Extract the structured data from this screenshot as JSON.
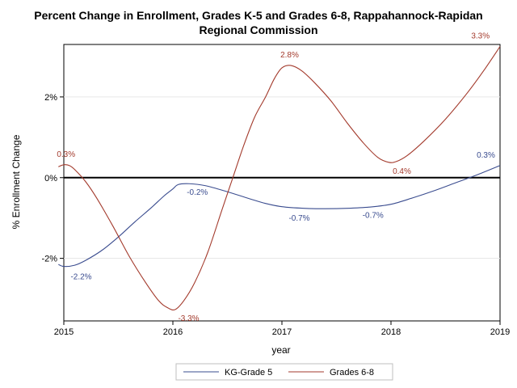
{
  "chart_data": {
    "type": "line",
    "title": [
      "Percent Change in Enrollment, Grades K-5 and Grades 6-8, Rappahannock-Rapidan",
      "Regional Commission"
    ],
    "xlabel": "year",
    "ylabel": "% Enrollment Change",
    "xlim": [
      2015,
      2019
    ],
    "ylim": [
      -3.55,
      3.3
    ],
    "x_ticks": [
      "2015",
      "2016",
      "2017",
      "2018",
      "2019"
    ],
    "y_ticks": [
      {
        "value": -2,
        "label": "-2%"
      },
      {
        "value": 0,
        "label": "0%"
      },
      {
        "value": 2,
        "label": "2%"
      }
    ],
    "reference_line": 0,
    "grid": true,
    "legend_position": "bottom",
    "series": [
      {
        "name": "KG-Grade 5",
        "color": "#3a4c8f",
        "points": [
          [
            2014.95,
            -2.15
          ],
          [
            2015.0,
            -2.2
          ],
          [
            2015.1,
            -2.17
          ],
          [
            2015.2,
            -2.05
          ],
          [
            2015.35,
            -1.8
          ],
          [
            2015.5,
            -1.47
          ],
          [
            2015.65,
            -1.1
          ],
          [
            2015.8,
            -0.75
          ],
          [
            2015.92,
            -0.45
          ],
          [
            2016.0,
            -0.28
          ],
          [
            2016.05,
            -0.17
          ],
          [
            2016.15,
            -0.15
          ],
          [
            2016.3,
            -0.2
          ],
          [
            2016.5,
            -0.35
          ],
          [
            2016.7,
            -0.52
          ],
          [
            2016.85,
            -0.64
          ],
          [
            2017.0,
            -0.72
          ],
          [
            2017.2,
            -0.76
          ],
          [
            2017.4,
            -0.77
          ],
          [
            2017.6,
            -0.76
          ],
          [
            2017.8,
            -0.73
          ],
          [
            2018.0,
            -0.66
          ],
          [
            2018.2,
            -0.5
          ],
          [
            2018.4,
            -0.32
          ],
          [
            2018.6,
            -0.12
          ],
          [
            2018.8,
            0.08
          ],
          [
            2019.0,
            0.3
          ]
        ],
        "labels": [
          {
            "x": 2015.1,
            "y": -2.2,
            "text": "-2.2%"
          },
          {
            "x": 2016.15,
            "y": -0.15,
            "text": "-0.2%"
          },
          {
            "x": 2017.1,
            "y": -0.75,
            "text": "-0.7%"
          },
          {
            "x": 2017.85,
            "y": -0.72,
            "text": "-0.7%"
          },
          {
            "x": 2018.9,
            "y": 0.3,
            "text": "0.3%"
          }
        ]
      },
      {
        "name": "Grades 6-8",
        "color": "#a33a2c",
        "points": [
          [
            2014.95,
            0.27
          ],
          [
            2015.0,
            0.32
          ],
          [
            2015.05,
            0.3
          ],
          [
            2015.1,
            0.2
          ],
          [
            2015.2,
            -0.1
          ],
          [
            2015.3,
            -0.5
          ],
          [
            2015.45,
            -1.2
          ],
          [
            2015.6,
            -1.95
          ],
          [
            2015.75,
            -2.6
          ],
          [
            2015.87,
            -3.05
          ],
          [
            2015.95,
            -3.22
          ],
          [
            2016.02,
            -3.27
          ],
          [
            2016.1,
            -3.05
          ],
          [
            2016.2,
            -2.6
          ],
          [
            2016.32,
            -1.85
          ],
          [
            2016.45,
            -0.8
          ],
          [
            2016.55,
            0.0
          ],
          [
            2016.65,
            0.8
          ],
          [
            2016.75,
            1.5
          ],
          [
            2016.85,
            2.0
          ],
          [
            2016.93,
            2.45
          ],
          [
            2017.0,
            2.72
          ],
          [
            2017.08,
            2.78
          ],
          [
            2017.18,
            2.65
          ],
          [
            2017.3,
            2.35
          ],
          [
            2017.45,
            1.9
          ],
          [
            2017.6,
            1.35
          ],
          [
            2017.75,
            0.85
          ],
          [
            2017.88,
            0.5
          ],
          [
            2017.98,
            0.38
          ],
          [
            2018.05,
            0.4
          ],
          [
            2018.15,
            0.55
          ],
          [
            2018.3,
            0.9
          ],
          [
            2018.5,
            1.45
          ],
          [
            2018.7,
            2.1
          ],
          [
            2018.85,
            2.65
          ],
          [
            2019.0,
            3.25
          ]
        ],
        "labels": [
          {
            "x": 2015.05,
            "y": 0.32,
            "text": "0.3%"
          },
          {
            "x": 2016.1,
            "y": -3.27,
            "text": "-3.3%"
          },
          {
            "x": 2017.1,
            "y": 2.78,
            "text": "2.8%"
          },
          {
            "x": 2018.1,
            "y": 0.38,
            "text": "0.4%"
          },
          {
            "x": 2018.85,
            "y": 3.25,
            "text": "3.3%"
          }
        ]
      }
    ]
  }
}
